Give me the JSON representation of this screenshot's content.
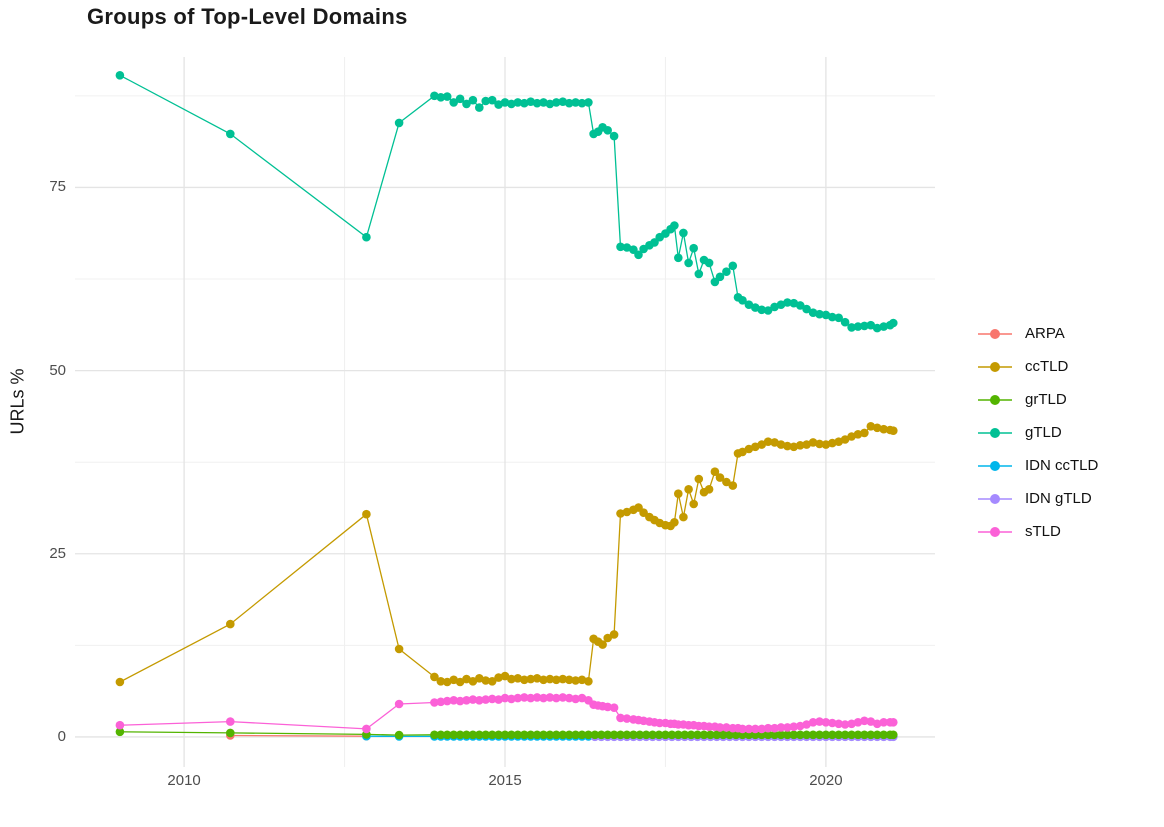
{
  "chart_data": {
    "type": "line",
    "title": "Groups of Top-Level Domains",
    "ylabel": "URLs %",
    "xlabel": "",
    "xlim": [
      2008.3,
      2021.7
    ],
    "ylim": [
      -4.1,
      92.8
    ],
    "x_ticks": [
      2010,
      2015,
      2020
    ],
    "y_ticks": [
      0,
      25,
      50,
      75
    ],
    "x_minor": [
      2012.5,
      2017.5
    ],
    "y_minor": [
      12.5,
      37.5,
      62.5,
      87.5
    ],
    "grid": "major and minor gridlines on white background",
    "legend_position": "right-center, no title",
    "style": {
      "grid_major": "#e4e4e4",
      "grid_minor": "#f0f0f0",
      "tick_text": "#4d4d4d",
      "title_text": "#1a1a1a",
      "background": "#ffffff"
    },
    "series": [
      {
        "name": "ARPA",
        "color": "#F8766D",
        "z": 1,
        "points": [
          [
            2010.72,
            0.2
          ],
          [
            2012.84,
            0.1
          ]
        ]
      },
      {
        "name": "ccTLD",
        "color": "#C49A00",
        "z": 2,
        "points": [
          [
            2009,
            7.5
          ],
          [
            2010.72,
            15.4
          ],
          [
            2012.84,
            30.4
          ],
          [
            2013.35,
            12.0
          ],
          [
            2013.9,
            8.2
          ],
          [
            2014.0,
            7.6
          ],
          [
            2014.1,
            7.5
          ],
          [
            2014.2,
            7.8
          ],
          [
            2014.3,
            7.5
          ],
          [
            2014.4,
            7.9
          ],
          [
            2014.5,
            7.6
          ],
          [
            2014.6,
            8.0
          ],
          [
            2014.7,
            7.7
          ],
          [
            2014.8,
            7.6
          ],
          [
            2014.9,
            8.1
          ],
          [
            2015.0,
            8.3
          ],
          [
            2015.1,
            7.9
          ],
          [
            2015.2,
            8.0
          ],
          [
            2015.3,
            7.8
          ],
          [
            2015.4,
            7.9
          ],
          [
            2015.5,
            8.0
          ],
          [
            2015.6,
            7.8
          ],
          [
            2015.7,
            7.9
          ],
          [
            2015.8,
            7.8
          ],
          [
            2015.9,
            7.9
          ],
          [
            2016.0,
            7.8
          ],
          [
            2016.1,
            7.7
          ],
          [
            2016.2,
            7.8
          ],
          [
            2016.3,
            7.6
          ],
          [
            2016.38,
            13.4
          ],
          [
            2016.45,
            13.0
          ],
          [
            2016.52,
            12.6
          ],
          [
            2016.6,
            13.5
          ],
          [
            2016.7,
            14.0
          ],
          [
            2016.8,
            30.5
          ],
          [
            2016.9,
            30.7
          ],
          [
            2017.0,
            31.0
          ],
          [
            2017.08,
            31.3
          ],
          [
            2017.16,
            30.6
          ],
          [
            2017.25,
            30.0
          ],
          [
            2017.33,
            29.6
          ],
          [
            2017.41,
            29.2
          ],
          [
            2017.5,
            28.9
          ],
          [
            2017.58,
            28.8
          ],
          [
            2017.64,
            29.3
          ],
          [
            2017.7,
            33.2
          ],
          [
            2017.78,
            30.0
          ],
          [
            2017.86,
            33.8
          ],
          [
            2017.94,
            31.8
          ],
          [
            2018.02,
            35.2
          ],
          [
            2018.1,
            33.4
          ],
          [
            2018.18,
            33.8
          ],
          [
            2018.27,
            36.2
          ],
          [
            2018.35,
            35.4
          ],
          [
            2018.45,
            34.8
          ],
          [
            2018.55,
            34.3
          ],
          [
            2018.63,
            38.7
          ],
          [
            2018.7,
            38.9
          ],
          [
            2018.8,
            39.3
          ],
          [
            2018.9,
            39.6
          ],
          [
            2019.0,
            39.9
          ],
          [
            2019.1,
            40.3
          ],
          [
            2019.2,
            40.2
          ],
          [
            2019.3,
            39.9
          ],
          [
            2019.4,
            39.7
          ],
          [
            2019.5,
            39.6
          ],
          [
            2019.6,
            39.8
          ],
          [
            2019.7,
            39.9
          ],
          [
            2019.8,
            40.2
          ],
          [
            2019.9,
            40.0
          ],
          [
            2020.0,
            39.9
          ],
          [
            2020.1,
            40.1
          ],
          [
            2020.2,
            40.3
          ],
          [
            2020.3,
            40.6
          ],
          [
            2020.4,
            41.0
          ],
          [
            2020.5,
            41.3
          ],
          [
            2020.6,
            41.5
          ],
          [
            2020.7,
            42.4
          ],
          [
            2020.8,
            42.2
          ],
          [
            2020.9,
            42.0
          ],
          [
            2021.0,
            41.9
          ],
          [
            2021.05,
            41.8
          ]
        ]
      },
      {
        "name": "grTLD",
        "color": "#53B400",
        "z": 5,
        "points": [
          [
            2009,
            0.7
          ],
          [
            2010.72,
            0.55
          ],
          [
            2012.84,
            0.35
          ],
          [
            2013.35,
            0.25
          ],
          [
            2013.9,
            0.3
          ],
          [
            2021.05,
            0.3
          ]
        ],
        "runs": [
          {
            "from": 2014.0,
            "to": 2021.0,
            "step": 0.1,
            "value": 0.3
          }
        ]
      },
      {
        "name": "gTLD",
        "color": "#00C094",
        "z": 6,
        "points": [
          [
            2009,
            90.3
          ],
          [
            2010.72,
            82.3
          ],
          [
            2012.84,
            68.2
          ],
          [
            2013.35,
            83.8
          ],
          [
            2013.9,
            87.5
          ],
          [
            2014.0,
            87.3
          ],
          [
            2014.1,
            87.4
          ],
          [
            2014.2,
            86.6
          ],
          [
            2014.3,
            87.1
          ],
          [
            2014.4,
            86.4
          ],
          [
            2014.5,
            86.9
          ],
          [
            2014.6,
            85.9
          ],
          [
            2014.7,
            86.8
          ],
          [
            2014.8,
            86.9
          ],
          [
            2014.9,
            86.3
          ],
          [
            2015.0,
            86.6
          ],
          [
            2015.1,
            86.4
          ],
          [
            2015.2,
            86.6
          ],
          [
            2015.3,
            86.5
          ],
          [
            2015.4,
            86.7
          ],
          [
            2015.5,
            86.5
          ],
          [
            2015.6,
            86.6
          ],
          [
            2015.7,
            86.4
          ],
          [
            2015.8,
            86.6
          ],
          [
            2015.9,
            86.7
          ],
          [
            2016.0,
            86.5
          ],
          [
            2016.1,
            86.6
          ],
          [
            2016.2,
            86.5
          ],
          [
            2016.3,
            86.6
          ],
          [
            2016.38,
            82.3
          ],
          [
            2016.45,
            82.6
          ],
          [
            2016.52,
            83.2
          ],
          [
            2016.6,
            82.8
          ],
          [
            2016.7,
            82.0
          ],
          [
            2016.8,
            66.9
          ],
          [
            2016.9,
            66.8
          ],
          [
            2017.0,
            66.5
          ],
          [
            2017.08,
            65.8
          ],
          [
            2017.16,
            66.6
          ],
          [
            2017.25,
            67.1
          ],
          [
            2017.33,
            67.5
          ],
          [
            2017.41,
            68.2
          ],
          [
            2017.5,
            68.7
          ],
          [
            2017.58,
            69.3
          ],
          [
            2017.64,
            69.8
          ],
          [
            2017.7,
            65.4
          ],
          [
            2017.78,
            68.8
          ],
          [
            2017.86,
            64.7
          ],
          [
            2017.94,
            66.7
          ],
          [
            2018.02,
            63.2
          ],
          [
            2018.1,
            65.1
          ],
          [
            2018.18,
            64.7
          ],
          [
            2018.27,
            62.1
          ],
          [
            2018.35,
            62.8
          ],
          [
            2018.45,
            63.5
          ],
          [
            2018.55,
            64.3
          ],
          [
            2018.63,
            60.0
          ],
          [
            2018.7,
            59.6
          ],
          [
            2018.8,
            59.0
          ],
          [
            2018.9,
            58.6
          ],
          [
            2019.0,
            58.3
          ],
          [
            2019.1,
            58.2
          ],
          [
            2019.2,
            58.7
          ],
          [
            2019.3,
            59.0
          ],
          [
            2019.4,
            59.3
          ],
          [
            2019.5,
            59.2
          ],
          [
            2019.6,
            58.9
          ],
          [
            2019.7,
            58.4
          ],
          [
            2019.8,
            57.9
          ],
          [
            2019.9,
            57.7
          ],
          [
            2020.0,
            57.6
          ],
          [
            2020.1,
            57.3
          ],
          [
            2020.2,
            57.2
          ],
          [
            2020.3,
            56.6
          ],
          [
            2020.4,
            55.9
          ],
          [
            2020.5,
            56.0
          ],
          [
            2020.6,
            56.1
          ],
          [
            2020.7,
            56.2
          ],
          [
            2020.8,
            55.8
          ],
          [
            2020.9,
            56.0
          ],
          [
            2021.0,
            56.2
          ],
          [
            2021.05,
            56.5
          ]
        ]
      },
      {
        "name": "IDN ccTLD",
        "color": "#00B6EB",
        "z": 3,
        "points": [
          [
            2012.84,
            0.1
          ],
          [
            2013.35,
            0.08
          ],
          [
            2021.05,
            0.07
          ]
        ],
        "runs": [
          {
            "from": 2013.9,
            "to": 2021.0,
            "step": 0.1,
            "value": 0.07
          }
        ]
      },
      {
        "name": "IDN gTLD",
        "color": "#A58AFF",
        "z": 4,
        "points": [
          [
            2021.05,
            0.02
          ]
        ],
        "runs": [
          {
            "from": 2016.4,
            "to": 2021.0,
            "step": 0.1,
            "value": 0.02
          }
        ]
      },
      {
        "name": "sTLD",
        "color": "#FB61D7",
        "z": 7,
        "points": [
          [
            2009,
            1.6
          ],
          [
            2010.72,
            2.1
          ],
          [
            2012.84,
            1.1
          ],
          [
            2013.35,
            4.5
          ],
          [
            2013.9,
            4.7
          ],
          [
            2014.0,
            4.8
          ],
          [
            2014.1,
            4.9
          ],
          [
            2014.2,
            5.0
          ],
          [
            2014.3,
            4.9
          ],
          [
            2014.4,
            5.0
          ],
          [
            2014.5,
            5.1
          ],
          [
            2014.6,
            5.0
          ],
          [
            2014.7,
            5.1
          ],
          [
            2014.8,
            5.2
          ],
          [
            2014.9,
            5.1
          ],
          [
            2015.0,
            5.3
          ],
          [
            2015.1,
            5.2
          ],
          [
            2015.2,
            5.3
          ],
          [
            2015.3,
            5.4
          ],
          [
            2015.4,
            5.3
          ],
          [
            2015.5,
            5.4
          ],
          [
            2015.6,
            5.3
          ],
          [
            2015.7,
            5.4
          ],
          [
            2015.8,
            5.3
          ],
          [
            2015.9,
            5.4
          ],
          [
            2016.0,
            5.3
          ],
          [
            2016.1,
            5.2
          ],
          [
            2016.2,
            5.3
          ],
          [
            2016.3,
            5.0
          ],
          [
            2016.38,
            4.4
          ],
          [
            2016.45,
            4.3
          ],
          [
            2016.52,
            4.2
          ],
          [
            2016.6,
            4.1
          ],
          [
            2016.7,
            4.0
          ],
          [
            2016.8,
            2.6
          ],
          [
            2016.9,
            2.5
          ],
          [
            2017.0,
            2.4
          ],
          [
            2017.08,
            2.3
          ],
          [
            2017.16,
            2.2
          ],
          [
            2017.25,
            2.1
          ],
          [
            2017.33,
            2.0
          ],
          [
            2017.41,
            1.9
          ],
          [
            2017.5,
            1.9
          ],
          [
            2017.58,
            1.8
          ],
          [
            2017.64,
            1.8
          ],
          [
            2017.7,
            1.7
          ],
          [
            2017.78,
            1.7
          ],
          [
            2017.86,
            1.6
          ],
          [
            2017.94,
            1.6
          ],
          [
            2018.02,
            1.5
          ],
          [
            2018.1,
            1.5
          ],
          [
            2018.18,
            1.4
          ],
          [
            2018.27,
            1.4
          ],
          [
            2018.35,
            1.3
          ],
          [
            2018.45,
            1.3
          ],
          [
            2018.55,
            1.2
          ],
          [
            2018.63,
            1.2
          ],
          [
            2018.7,
            1.1
          ],
          [
            2018.8,
            1.1
          ],
          [
            2018.9,
            1.1
          ],
          [
            2019.0,
            1.1
          ],
          [
            2019.1,
            1.2
          ],
          [
            2019.2,
            1.2
          ],
          [
            2019.3,
            1.3
          ],
          [
            2019.4,
            1.3
          ],
          [
            2019.5,
            1.4
          ],
          [
            2019.6,
            1.5
          ],
          [
            2019.7,
            1.7
          ],
          [
            2019.8,
            2.0
          ],
          [
            2019.9,
            2.1
          ],
          [
            2020.0,
            2.0
          ],
          [
            2020.1,
            1.9
          ],
          [
            2020.2,
            1.8
          ],
          [
            2020.3,
            1.7
          ],
          [
            2020.4,
            1.8
          ],
          [
            2020.5,
            2.0
          ],
          [
            2020.6,
            2.2
          ],
          [
            2020.7,
            2.1
          ],
          [
            2020.8,
            1.8
          ],
          [
            2020.9,
            2.0
          ],
          [
            2021.0,
            2.0
          ],
          [
            2021.05,
            2.0
          ]
        ]
      }
    ]
  }
}
